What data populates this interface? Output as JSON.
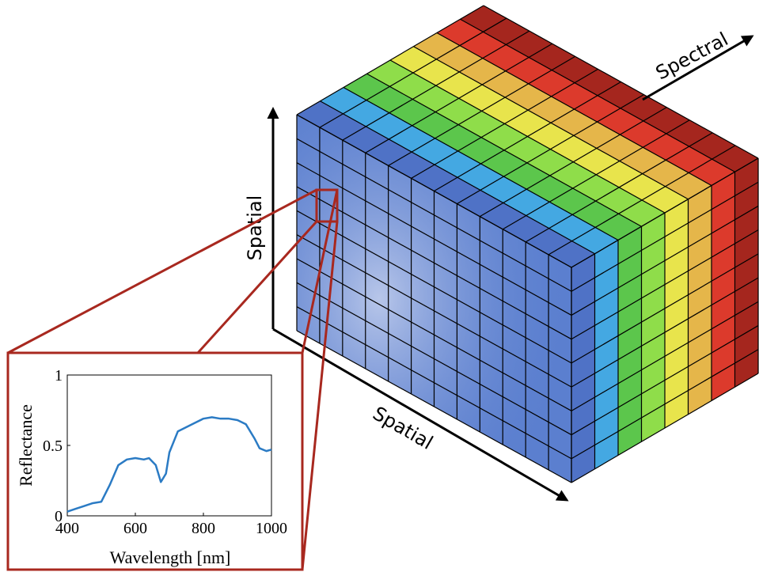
{
  "cube": {
    "axis_labels": [
      "Spatial",
      "Spatial",
      "Spectral"
    ]
  },
  "chart_data": {
    "type": "line",
    "xlabel": "Wavelength [nm]",
    "ylabel": "Reflectance",
    "x": [
      400,
      425,
      450,
      475,
      500,
      525,
      550,
      575,
      600,
      625,
      640,
      660,
      675,
      690,
      700,
      725,
      750,
      775,
      800,
      825,
      850,
      875,
      900,
      925,
      950,
      965,
      985,
      1000
    ],
    "values": [
      0.03,
      0.05,
      0.07,
      0.09,
      0.1,
      0.22,
      0.36,
      0.4,
      0.41,
      0.4,
      0.41,
      0.36,
      0.24,
      0.3,
      0.45,
      0.6,
      0.63,
      0.66,
      0.69,
      0.7,
      0.69,
      0.69,
      0.68,
      0.65,
      0.55,
      0.48,
      0.46,
      0.47
    ],
    "color": "#2b7bc4",
    "xlim": [
      400,
      1000
    ],
    "ylim": [
      0,
      1
    ],
    "xticks": [
      400,
      600,
      800,
      1000
    ],
    "yticks": [
      0,
      0.5,
      1
    ]
  }
}
